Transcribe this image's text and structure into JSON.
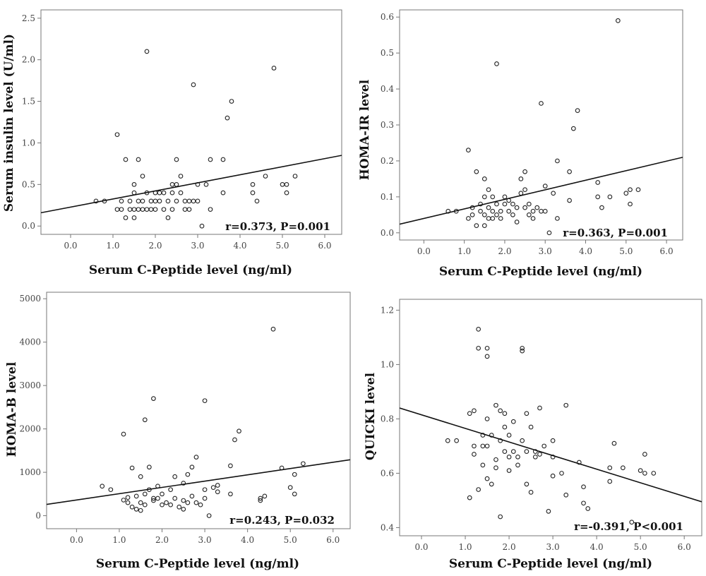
{
  "chart_data": [
    {
      "id": "insulin",
      "type": "scatter",
      "title": "",
      "xlabel": "Serum C-Peptide level (ng/ml)",
      "ylabel": "Serum insulin level (U/ml)",
      "xlim": [
        -0.7,
        6.4
      ],
      "ylim": [
        -0.1,
        2.6
      ],
      "xticks": [
        0,
        1,
        2,
        3,
        4,
        5,
        6
      ],
      "xtick_labels": [
        "0.0",
        "1.0",
        "2.0",
        "3.0",
        "4.0",
        "5.0",
        "6.0"
      ],
      "yticks": [
        0,
        0.5,
        1,
        1.5,
        2,
        2.5
      ],
      "ytick_labels": [
        "0.0",
        "0.5",
        "1.0",
        "1.5",
        "2.0",
        "2.5"
      ],
      "annotation": "r=0.373, P=0.001",
      "fit_line": {
        "x": [
          -0.7,
          6.4
        ],
        "y": [
          0.16,
          0.85
        ]
      },
      "points": [
        [
          0.6,
          0.3
        ],
        [
          0.8,
          0.3
        ],
        [
          1.1,
          1.1
        ],
        [
          1.1,
          0.2
        ],
        [
          1.2,
          0.3
        ],
        [
          1.2,
          0.2
        ],
        [
          1.3,
          0.8
        ],
        [
          1.3,
          0.1
        ],
        [
          1.4,
          0.3
        ],
        [
          1.4,
          0.2
        ],
        [
          1.5,
          0.5
        ],
        [
          1.5,
          0.4
        ],
        [
          1.5,
          0.2
        ],
        [
          1.5,
          0.1
        ],
        [
          1.6,
          0.8
        ],
        [
          1.6,
          0.3
        ],
        [
          1.6,
          0.2
        ],
        [
          1.7,
          0.6
        ],
        [
          1.7,
          0.3
        ],
        [
          1.7,
          0.2
        ],
        [
          1.8,
          2.1
        ],
        [
          1.8,
          0.4
        ],
        [
          1.8,
          0.2
        ],
        [
          1.9,
          0.3
        ],
        [
          1.9,
          0.2
        ],
        [
          2.0,
          0.4
        ],
        [
          2.0,
          0.3
        ],
        [
          2.0,
          0.2
        ],
        [
          2.1,
          0.4
        ],
        [
          2.1,
          0.3
        ],
        [
          2.2,
          0.4
        ],
        [
          2.2,
          0.2
        ],
        [
          2.3,
          0.3
        ],
        [
          2.3,
          0.1
        ],
        [
          2.4,
          0.5
        ],
        [
          2.4,
          0.4
        ],
        [
          2.4,
          0.2
        ],
        [
          2.5,
          0.8
        ],
        [
          2.5,
          0.5
        ],
        [
          2.5,
          0.3
        ],
        [
          2.6,
          0.6
        ],
        [
          2.6,
          0.4
        ],
        [
          2.7,
          0.3
        ],
        [
          2.7,
          0.2
        ],
        [
          2.8,
          0.3
        ],
        [
          2.8,
          0.2
        ],
        [
          2.9,
          1.7
        ],
        [
          2.9,
          0.3
        ],
        [
          3.0,
          0.5
        ],
        [
          3.0,
          0.3
        ],
        [
          3.1,
          0.0
        ],
        [
          3.2,
          0.5
        ],
        [
          3.3,
          0.8
        ],
        [
          3.3,
          0.2
        ],
        [
          3.6,
          0.8
        ],
        [
          3.6,
          0.4
        ],
        [
          3.7,
          1.3
        ],
        [
          3.8,
          1.5
        ],
        [
          4.3,
          0.5
        ],
        [
          4.3,
          0.4
        ],
        [
          4.4,
          0.3
        ],
        [
          4.6,
          0.6
        ],
        [
          4.8,
          1.9
        ],
        [
          5.0,
          0.5
        ],
        [
          5.1,
          0.5
        ],
        [
          5.1,
          0.4
        ],
        [
          5.3,
          0.6
        ]
      ]
    },
    {
      "id": "homa-ir",
      "type": "scatter",
      "title": "",
      "xlabel": "Serum C-Peptide level (ng/ml)",
      "ylabel": "HOMA-IR level",
      "xlim": [
        -0.6,
        6.4
      ],
      "ylim": [
        -0.02,
        0.62
      ],
      "xticks": [
        0,
        1,
        2,
        3,
        4,
        5,
        6
      ],
      "xtick_labels": [
        "0.0",
        "1.0",
        "2.0",
        "3.0",
        "4.0",
        "5.0",
        "6.0"
      ],
      "yticks": [
        0,
        0.1,
        0.2,
        0.3,
        0.4,
        0.5,
        0.6
      ],
      "ytick_labels": [
        "0.0",
        "0.1",
        "0.2",
        "0.3",
        "0.4",
        "0.5",
        "0.6"
      ],
      "annotation": "r=0.363, P=0.001",
      "fit_line": {
        "x": [
          -0.6,
          6.4
        ],
        "y": [
          0.024,
          0.21
        ]
      },
      "points": [
        [
          0.6,
          0.06
        ],
        [
          0.8,
          0.06
        ],
        [
          1.1,
          0.23
        ],
        [
          1.1,
          0.04
        ],
        [
          1.2,
          0.07
        ],
        [
          1.2,
          0.05
        ],
        [
          1.3,
          0.17
        ],
        [
          1.3,
          0.02
        ],
        [
          1.4,
          0.08
        ],
        [
          1.4,
          0.06
        ],
        [
          1.5,
          0.15
        ],
        [
          1.5,
          0.1
        ],
        [
          1.5,
          0.05
        ],
        [
          1.5,
          0.02
        ],
        [
          1.6,
          0.12
        ],
        [
          1.6,
          0.07
        ],
        [
          1.6,
          0.04
        ],
        [
          1.7,
          0.1
        ],
        [
          1.7,
          0.06
        ],
        [
          1.7,
          0.04
        ],
        [
          1.8,
          0.47
        ],
        [
          1.8,
          0.08
        ],
        [
          1.8,
          0.05
        ],
        [
          1.9,
          0.06
        ],
        [
          1.9,
          0.04
        ],
        [
          2.0,
          0.1
        ],
        [
          2.0,
          0.08
        ],
        [
          2.1,
          0.09
        ],
        [
          2.1,
          0.06
        ],
        [
          2.2,
          0.08
        ],
        [
          2.2,
          0.05
        ],
        [
          2.3,
          0.07
        ],
        [
          2.3,
          0.03
        ],
        [
          2.4,
          0.15
        ],
        [
          2.4,
          0.11
        ],
        [
          2.5,
          0.17
        ],
        [
          2.5,
          0.12
        ],
        [
          2.5,
          0.07
        ],
        [
          2.6,
          0.08
        ],
        [
          2.6,
          0.05
        ],
        [
          2.7,
          0.06
        ],
        [
          2.7,
          0.04
        ],
        [
          2.8,
          0.07
        ],
        [
          2.9,
          0.36
        ],
        [
          2.9,
          0.06
        ],
        [
          3.0,
          0.13
        ],
        [
          3.0,
          0.06
        ],
        [
          3.1,
          0.0
        ],
        [
          3.2,
          0.11
        ],
        [
          3.3,
          0.2
        ],
        [
          3.3,
          0.04
        ],
        [
          3.6,
          0.17
        ],
        [
          3.6,
          0.09
        ],
        [
          3.7,
          0.29
        ],
        [
          3.8,
          0.34
        ],
        [
          4.3,
          0.14
        ],
        [
          4.3,
          0.1
        ],
        [
          4.4,
          0.07
        ],
        [
          4.6,
          0.1
        ],
        [
          4.8,
          0.59
        ],
        [
          5.0,
          0.11
        ],
        [
          5.1,
          0.12
        ],
        [
          5.1,
          0.08
        ],
        [
          5.3,
          0.12
        ]
      ]
    },
    {
      "id": "homa-b",
      "type": "scatter",
      "title": "",
      "xlabel": "Serum C-Peptide level (ng/ml)",
      "ylabel": "HOMA-B level",
      "xlim": [
        -0.7,
        6.4
      ],
      "ylim": [
        -300,
        5150
      ],
      "xticks": [
        0,
        1,
        2,
        3,
        4,
        5,
        6
      ],
      "xtick_labels": [
        "0.0",
        "1.0",
        "2.0",
        "3.0",
        "4.0",
        "5.0",
        "6.0"
      ],
      "yticks": [
        0,
        1000,
        2000,
        3000,
        4000,
        5000
      ],
      "ytick_labels": [
        "0",
        "1000",
        "2000",
        "3000",
        "4000",
        "5000"
      ],
      "annotation": "r=0.243, P=0.032",
      "fit_line": {
        "x": [
          -0.7,
          6.4
        ],
        "y": [
          260,
          1290
        ]
      },
      "points": [
        [
          0.6,
          680
        ],
        [
          0.8,
          600
        ],
        [
          1.1,
          1880
        ],
        [
          1.1,
          360
        ],
        [
          1.2,
          420
        ],
        [
          1.2,
          300
        ],
        [
          1.3,
          1100
        ],
        [
          1.3,
          200
        ],
        [
          1.4,
          450
        ],
        [
          1.4,
          150
        ],
        [
          1.5,
          900
        ],
        [
          1.5,
          300
        ],
        [
          1.5,
          120
        ],
        [
          1.6,
          2210
        ],
        [
          1.6,
          500
        ],
        [
          1.6,
          250
        ],
        [
          1.7,
          1120
        ],
        [
          1.7,
          600
        ],
        [
          1.8,
          2700
        ],
        [
          1.8,
          400
        ],
        [
          1.8,
          350
        ],
        [
          1.9,
          680
        ],
        [
          1.9,
          400
        ],
        [
          2.0,
          500
        ],
        [
          2.0,
          250
        ],
        [
          2.1,
          300
        ],
        [
          2.2,
          600
        ],
        [
          2.2,
          250
        ],
        [
          2.3,
          900
        ],
        [
          2.3,
          400
        ],
        [
          2.4,
          200
        ],
        [
          2.5,
          750
        ],
        [
          2.5,
          350
        ],
        [
          2.5,
          150
        ],
        [
          2.6,
          950
        ],
        [
          2.6,
          300
        ],
        [
          2.7,
          1120
        ],
        [
          2.7,
          450
        ],
        [
          2.8,
          1350
        ],
        [
          2.8,
          300
        ],
        [
          2.9,
          250
        ],
        [
          3.0,
          2650
        ],
        [
          3.0,
          600
        ],
        [
          3.0,
          400
        ],
        [
          3.1,
          0
        ],
        [
          3.2,
          650
        ],
        [
          3.3,
          700
        ],
        [
          3.3,
          550
        ],
        [
          3.6,
          1150
        ],
        [
          3.6,
          500
        ],
        [
          3.7,
          1750
        ],
        [
          3.8,
          1950
        ],
        [
          4.3,
          400
        ],
        [
          4.3,
          350
        ],
        [
          4.4,
          450
        ],
        [
          4.6,
          4300
        ],
        [
          4.8,
          1100
        ],
        [
          5.0,
          650
        ],
        [
          5.1,
          950
        ],
        [
          5.1,
          500
        ],
        [
          5.3,
          1200
        ]
      ]
    },
    {
      "id": "quicki",
      "type": "scatter",
      "title": "",
      "xlabel": "Serum C-Peptide level (ng/ml)",
      "ylabel": "QUICKI level",
      "xlim": [
        -0.5,
        6.4
      ],
      "ylim": [
        0.37,
        1.24
      ],
      "xticks": [
        0,
        1,
        2,
        3,
        4,
        5,
        6
      ],
      "xtick_labels": [
        "0.0",
        "1.0",
        "2.0",
        "3.0",
        "4.0",
        "5.0",
        "6.0"
      ],
      "yticks": [
        0.4,
        0.6,
        0.8,
        1.0,
        1.2
      ],
      "ytick_labels": [
        "0.4",
        "0.6",
        "0.8",
        "1.0",
        "1.2"
      ],
      "annotation": "r=-0.391, P<0.001",
      "fit_line": {
        "x": [
          -0.5,
          6.4
        ],
        "y": [
          0.84,
          0.495
        ]
      },
      "points": [
        [
          0.6,
          0.72
        ],
        [
          0.8,
          0.72
        ],
        [
          1.1,
          0.51
        ],
        [
          1.1,
          0.82
        ],
        [
          1.2,
          0.83
        ],
        [
          1.2,
          0.7
        ],
        [
          1.2,
          0.67
        ],
        [
          1.3,
          1.13
        ],
        [
          1.3,
          1.06
        ],
        [
          1.3,
          0.54
        ],
        [
          1.4,
          0.74
        ],
        [
          1.4,
          0.7
        ],
        [
          1.4,
          0.63
        ],
        [
          1.5,
          1.06
        ],
        [
          1.5,
          1.03
        ],
        [
          1.5,
          0.8
        ],
        [
          1.5,
          0.7
        ],
        [
          1.5,
          0.58
        ],
        [
          1.6,
          0.74
        ],
        [
          1.6,
          0.56
        ],
        [
          1.7,
          0.85
        ],
        [
          1.7,
          0.65
        ],
        [
          1.7,
          0.62
        ],
        [
          1.8,
          0.83
        ],
        [
          1.8,
          0.72
        ],
        [
          1.8,
          0.44
        ],
        [
          1.9,
          0.82
        ],
        [
          1.9,
          0.77
        ],
        [
          1.9,
          0.68
        ],
        [
          2.0,
          0.74
        ],
        [
          2.0,
          0.66
        ],
        [
          2.0,
          0.61
        ],
        [
          2.1,
          0.79
        ],
        [
          2.1,
          0.68
        ],
        [
          2.2,
          0.66
        ],
        [
          2.2,
          0.63
        ],
        [
          2.3,
          1.06
        ],
        [
          2.3,
          1.05
        ],
        [
          2.3,
          0.72
        ],
        [
          2.4,
          0.82
        ],
        [
          2.4,
          0.68
        ],
        [
          2.4,
          0.56
        ],
        [
          2.5,
          0.77
        ],
        [
          2.5,
          0.53
        ],
        [
          2.6,
          0.68
        ],
        [
          2.6,
          0.66
        ],
        [
          2.7,
          0.84
        ],
        [
          2.7,
          0.67
        ],
        [
          2.8,
          0.7
        ],
        [
          2.9,
          0.46
        ],
        [
          3.0,
          0.72
        ],
        [
          3.0,
          0.66
        ],
        [
          3.0,
          0.59
        ],
        [
          3.2,
          0.6
        ],
        [
          3.3,
          0.85
        ],
        [
          3.3,
          0.52
        ],
        [
          3.6,
          0.64
        ],
        [
          3.7,
          0.55
        ],
        [
          3.7,
          0.49
        ],
        [
          3.8,
          0.47
        ],
        [
          4.3,
          0.62
        ],
        [
          4.3,
          0.57
        ],
        [
          4.4,
          0.71
        ],
        [
          4.6,
          0.62
        ],
        [
          4.8,
          0.42
        ],
        [
          5.0,
          0.61
        ],
        [
          5.1,
          0.67
        ],
        [
          5.1,
          0.6
        ],
        [
          5.3,
          0.6
        ]
      ]
    }
  ],
  "colors": {
    "marker_stroke": "#222222",
    "fit_line": "#111111",
    "frame": "#777777",
    "background": "#ffffff"
  }
}
